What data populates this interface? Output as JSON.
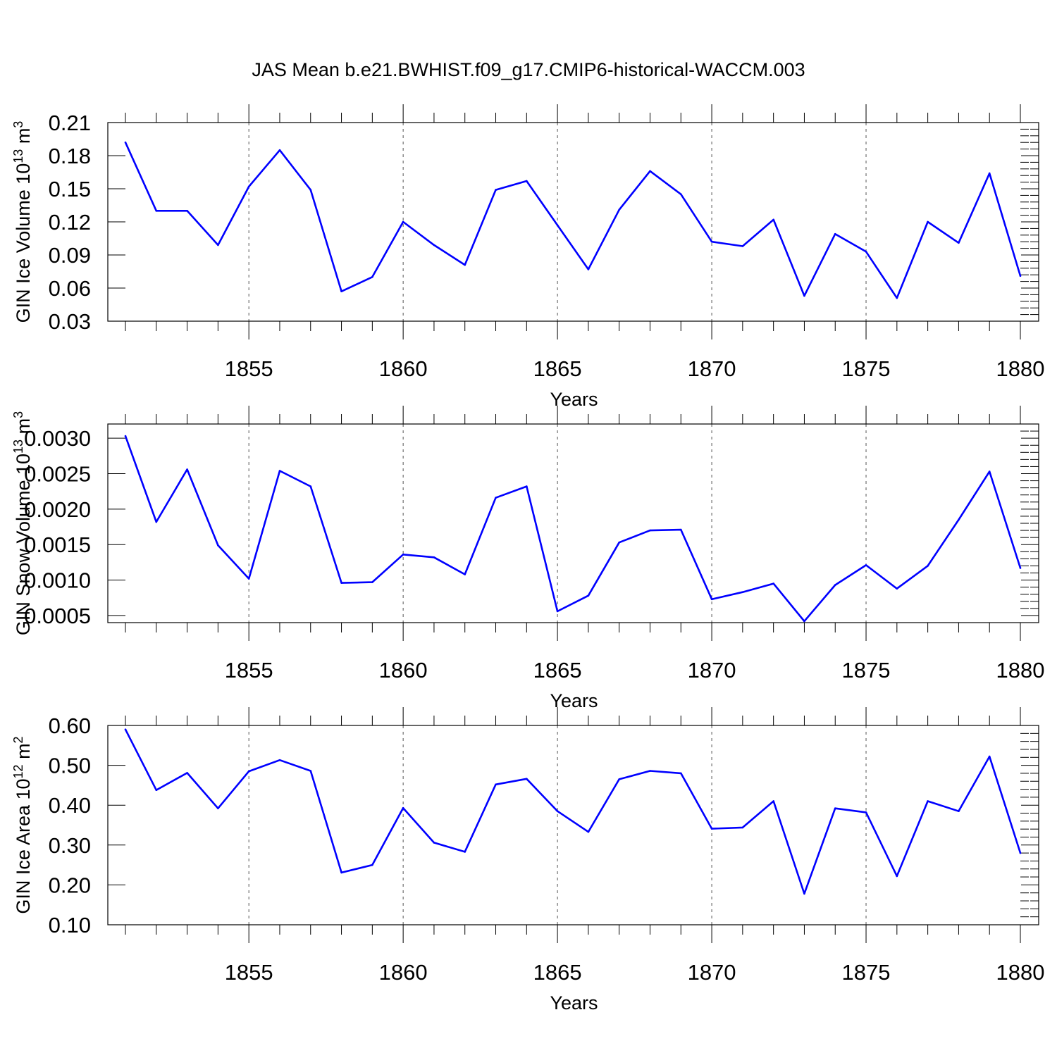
{
  "title": "JAS Mean b.e21.BWHIST.f09_g17.CMIP6-historical-WACCM.003",
  "colors": {
    "line": "#0000ff",
    "axis": "#000000",
    "grid": "#555555"
  },
  "chart_data": [
    {
      "type": "line",
      "ylabel": "GIN Ice Volume 10",
      "ylabel_exp": "13",
      "ylabel_unit": " m",
      "ylabel_unit_exp": "3",
      "xlabel": "Years",
      "xlim": [
        1851,
        1880
      ],
      "ylim": [
        0.03,
        0.21
      ],
      "yticks": [
        "0.03",
        "0.06",
        "0.09",
        "0.12",
        "0.15",
        "0.18",
        "0.21"
      ],
      "xticks": [
        "1855",
        "1860",
        "1865",
        "1870",
        "1875",
        "1880"
      ],
      "grid": "vertical dashed at major x ticks",
      "x": [
        1851,
        1852,
        1853,
        1854,
        1855,
        1856,
        1857,
        1858,
        1859,
        1860,
        1861,
        1862,
        1863,
        1864,
        1865,
        1866,
        1867,
        1868,
        1869,
        1870,
        1871,
        1872,
        1873,
        1874,
        1875,
        1876,
        1877,
        1878,
        1879,
        1880
      ],
      "values": [
        0.192,
        0.13,
        0.13,
        0.099,
        0.152,
        0.185,
        0.149,
        0.057,
        0.07,
        0.12,
        0.099,
        0.081,
        0.149,
        0.157,
        0.117,
        0.077,
        0.131,
        0.166,
        0.145,
        0.102,
        0.098,
        0.122,
        0.053,
        0.109,
        0.093,
        0.051,
        0.12,
        0.101,
        0.164,
        0.071
      ]
    },
    {
      "type": "line",
      "ylabel": "GIN Snow Volume 10",
      "ylabel_exp": "13",
      "ylabel_unit": " m",
      "ylabel_unit_exp": "3",
      "xlabel": "Years",
      "xlim": [
        1851,
        1880
      ],
      "ylim": [
        0.0004,
        0.0032
      ],
      "yticks": [
        "0.0005",
        "0.0010",
        "0.0015",
        "0.0020",
        "0.0025",
        "0.0030"
      ],
      "xticks": [
        "1855",
        "1860",
        "1865",
        "1870",
        "1875",
        "1880"
      ],
      "grid": "vertical dashed at major x ticks",
      "x": [
        1851,
        1852,
        1853,
        1854,
        1855,
        1856,
        1857,
        1858,
        1859,
        1860,
        1861,
        1862,
        1863,
        1864,
        1865,
        1866,
        1867,
        1868,
        1869,
        1870,
        1871,
        1872,
        1873,
        1874,
        1875,
        1876,
        1877,
        1878,
        1879,
        1880
      ],
      "values": [
        0.00303,
        0.00182,
        0.00256,
        0.00149,
        0.00102,
        0.00254,
        0.00232,
        0.00096,
        0.00097,
        0.00136,
        0.00132,
        0.00108,
        0.00216,
        0.00232,
        0.00056,
        0.00078,
        0.00153,
        0.0017,
        0.00171,
        0.00073,
        0.00083,
        0.00095,
        0.00042,
        0.00093,
        0.00121,
        0.00088,
        0.0012,
        0.00185,
        0.00253,
        0.00117
      ]
    },
    {
      "type": "line",
      "ylabel": "GIN Ice Area 10",
      "ylabel_exp": "12",
      "ylabel_unit": " m",
      "ylabel_unit_exp": "2",
      "xlabel": "Years",
      "xlim": [
        1851,
        1880
      ],
      "ylim": [
        0.1,
        0.6
      ],
      "yticks": [
        "0.10",
        "0.20",
        "0.30",
        "0.40",
        "0.50",
        "0.60"
      ],
      "xticks": [
        "1855",
        "1860",
        "1865",
        "1870",
        "1875",
        "1880"
      ],
      "grid": "vertical dashed at major x ticks",
      "x": [
        1851,
        1852,
        1853,
        1854,
        1855,
        1856,
        1857,
        1858,
        1859,
        1860,
        1861,
        1862,
        1863,
        1864,
        1865,
        1866,
        1867,
        1868,
        1869,
        1870,
        1871,
        1872,
        1873,
        1874,
        1875,
        1876,
        1877,
        1878,
        1879,
        1880
      ],
      "values": [
        0.59,
        0.438,
        0.481,
        0.392,
        0.485,
        0.513,
        0.486,
        0.231,
        0.25,
        0.393,
        0.306,
        0.283,
        0.452,
        0.466,
        0.385,
        0.333,
        0.465,
        0.486,
        0.48,
        0.341,
        0.344,
        0.41,
        0.178,
        0.392,
        0.382,
        0.222,
        0.41,
        0.385,
        0.522,
        0.28
      ]
    }
  ]
}
